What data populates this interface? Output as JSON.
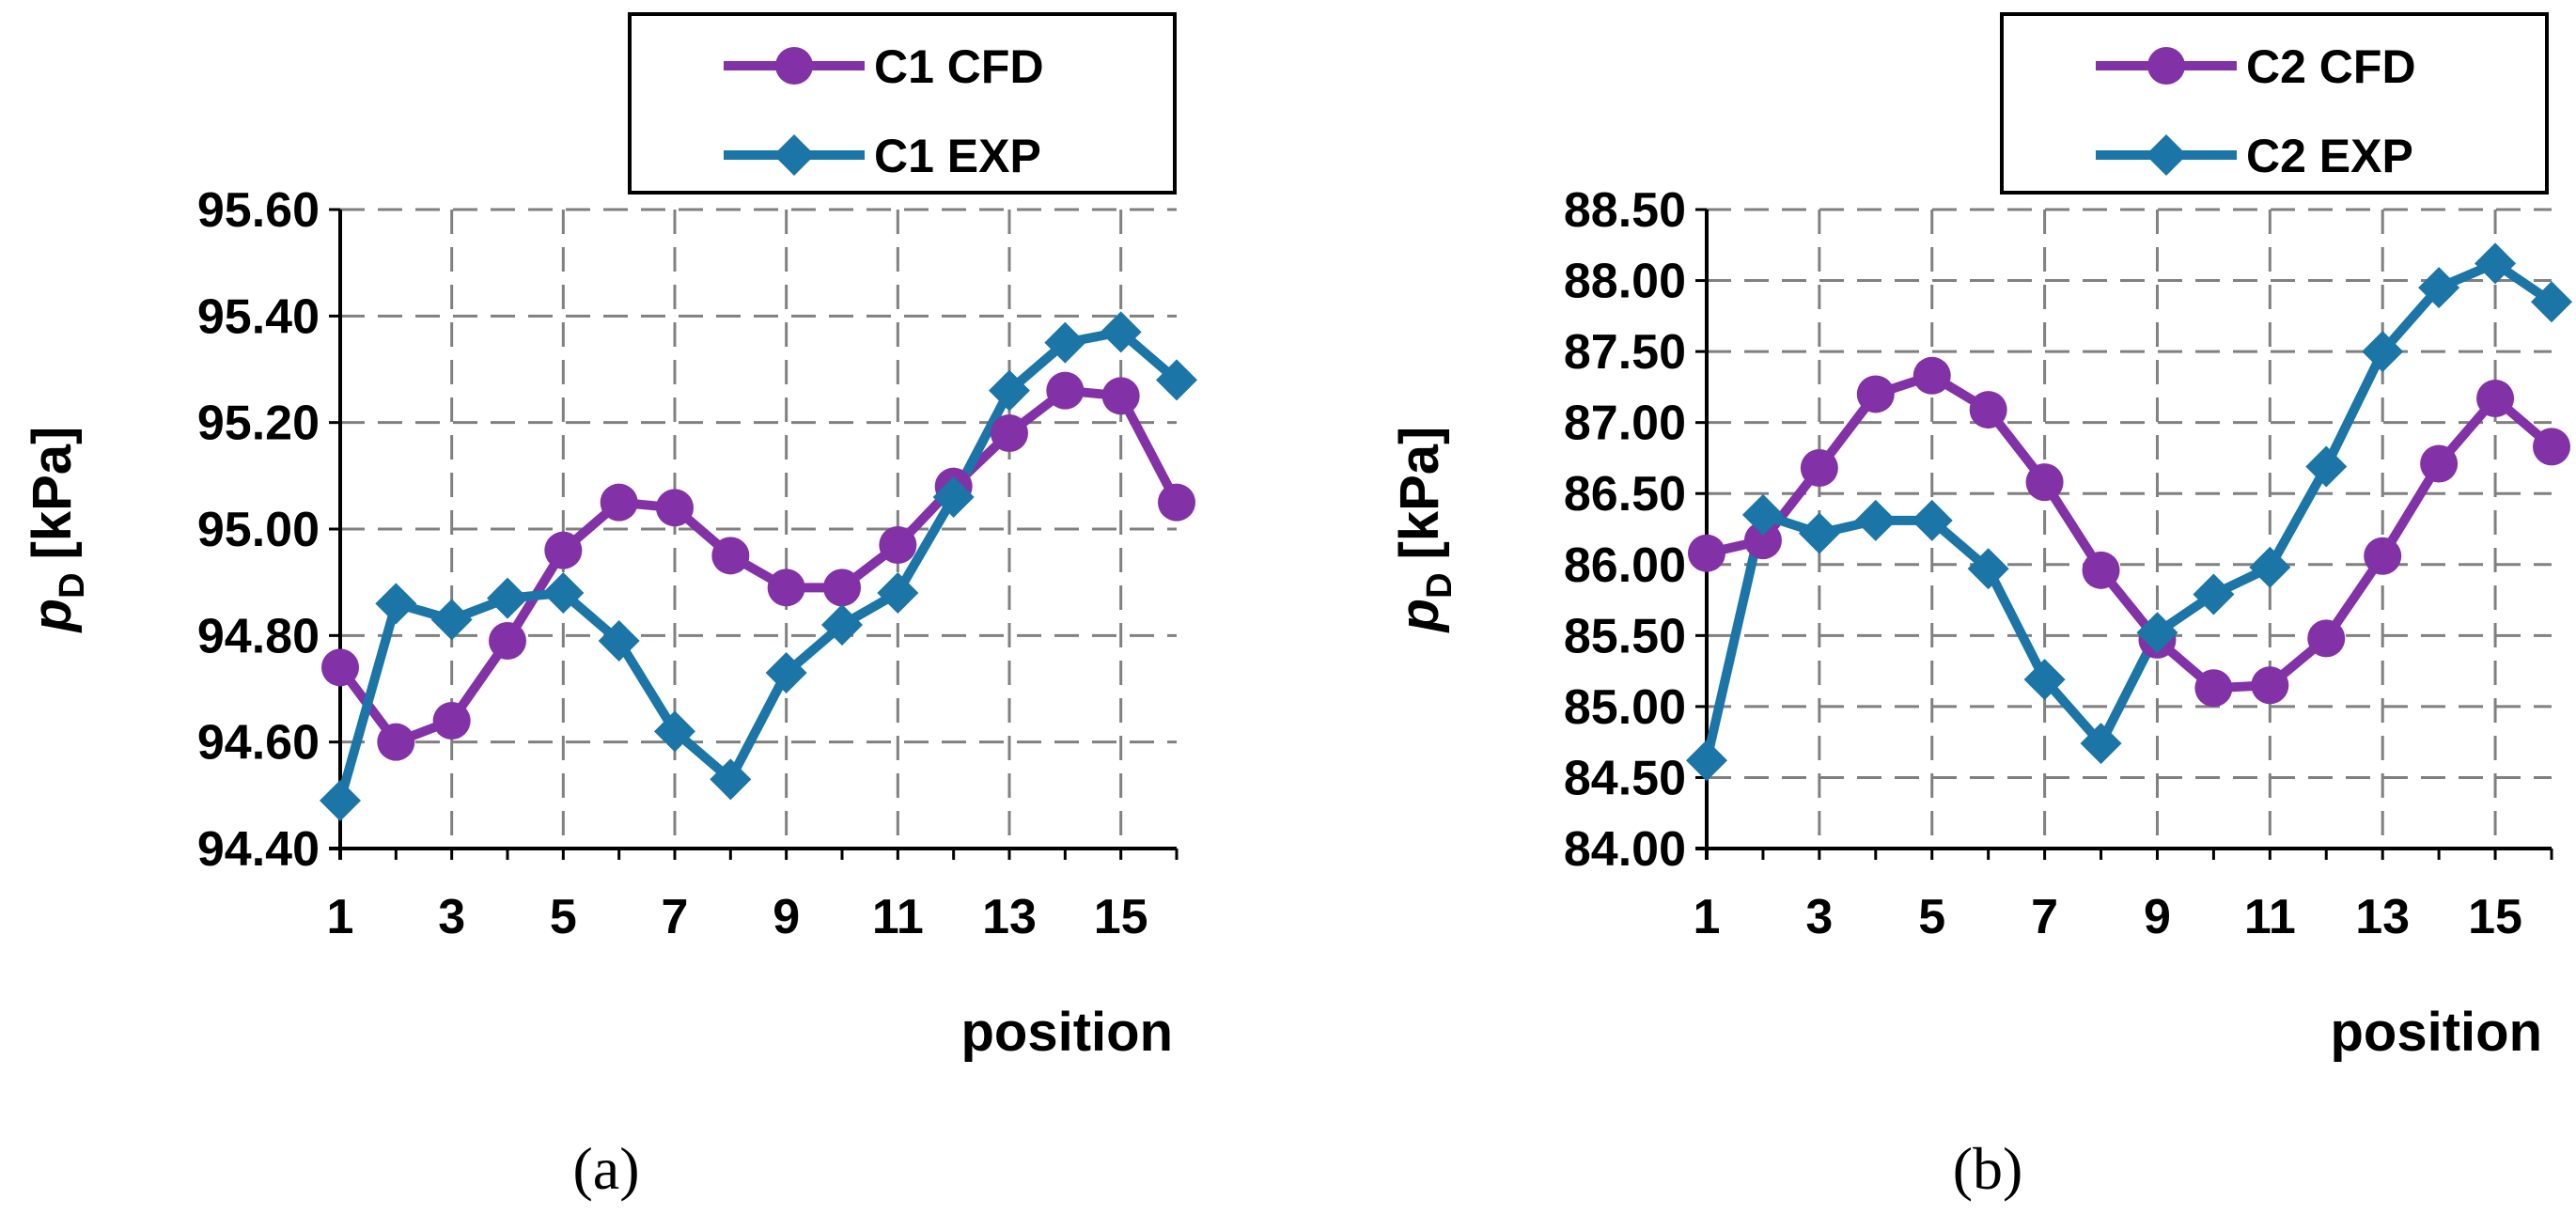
{
  "panels": [
    {
      "caption": "(a)",
      "ylabel_main": "p",
      "ylabel_sub": "D",
      "ylabel_unit": "[kPa]",
      "xlabel": "position",
      "legend": [
        "C1 CFD",
        "C1 EXP"
      ]
    },
    {
      "caption": "(b)",
      "ylabel_main": "p",
      "ylabel_sub": "D",
      "ylabel_unit": "[kPa]",
      "xlabel": "position",
      "legend": [
        "C2 CFD",
        "C2 EXP"
      ]
    }
  ],
  "colors": {
    "cfd": "#8232A6",
    "exp": "#1B75A6",
    "grid": "#808080"
  },
  "chart_data": [
    {
      "type": "line",
      "x": [
        1,
        2,
        3,
        4,
        5,
        6,
        7,
        8,
        9,
        10,
        11,
        12,
        13,
        14,
        15,
        16
      ],
      "xticks": [
        "1",
        "3",
        "5",
        "7",
        "9",
        "11",
        "13",
        "15"
      ],
      "xlabel": "position",
      "ylabel": "pD [kPa]",
      "ylim": [
        94.4,
        95.6
      ],
      "yticks": [
        "94.40",
        "94.60",
        "94.80",
        "95.00",
        "95.20",
        "95.40",
        "95.60"
      ],
      "grid": true,
      "legend_position": "top-right",
      "series": [
        {
          "name": "C1 CFD",
          "marker": "circle",
          "values": [
            94.74,
            94.6,
            94.64,
            94.79,
            94.96,
            95.05,
            95.04,
            94.95,
            94.89,
            94.89,
            94.97,
            95.08,
            95.18,
            95.26,
            95.25,
            95.05
          ]
        },
        {
          "name": "C1 EXP",
          "marker": "diamond",
          "values": [
            94.49,
            94.86,
            94.83,
            94.87,
            94.88,
            94.79,
            94.62,
            94.53,
            94.73,
            94.82,
            94.88,
            95.06,
            95.26,
            95.35,
            95.37,
            95.28
          ]
        }
      ]
    },
    {
      "type": "line",
      "x": [
        1,
        2,
        3,
        4,
        5,
        6,
        7,
        8,
        9,
        10,
        11,
        12,
        13,
        14,
        15,
        16
      ],
      "xticks": [
        "1",
        "3",
        "5",
        "7",
        "9",
        "11",
        "13",
        "15"
      ],
      "xlabel": "position",
      "ylabel": "pD [kPa]",
      "ylim": [
        84.0,
        88.5
      ],
      "yticks": [
        "84.00",
        "84.50",
        "85.00",
        "85.50",
        "86.00",
        "86.50",
        "87.00",
        "87.50",
        "88.00",
        "88.50"
      ],
      "grid": true,
      "legend_position": "top-right",
      "series": [
        {
          "name": "C2 CFD",
          "marker": "circle",
          "values": [
            86.08,
            86.17,
            86.68,
            87.2,
            87.33,
            87.09,
            86.58,
            85.96,
            85.47,
            85.13,
            85.15,
            85.48,
            86.06,
            86.71,
            87.17,
            86.83
          ]
        },
        {
          "name": "C2 EXP",
          "marker": "diamond",
          "values": [
            84.62,
            86.35,
            86.22,
            86.31,
            86.31,
            85.97,
            85.19,
            84.74,
            85.52,
            85.79,
            85.98,
            86.69,
            87.5,
            87.95,
            88.12,
            87.85
          ]
        }
      ]
    }
  ]
}
